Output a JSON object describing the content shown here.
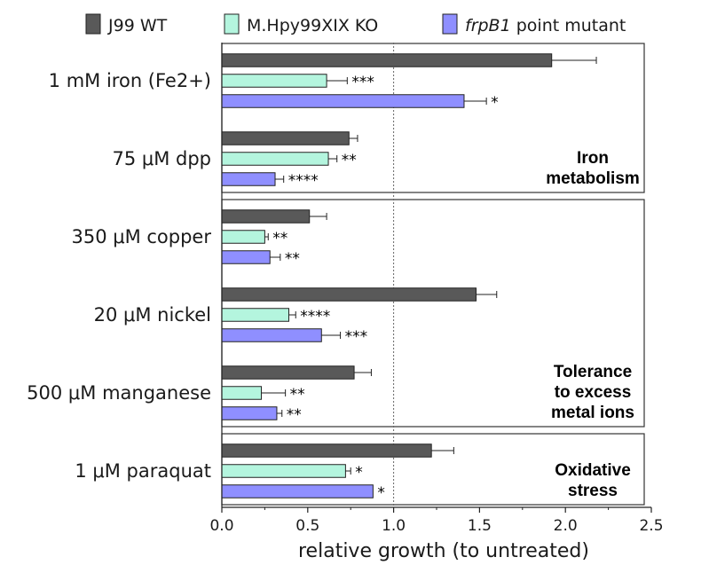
{
  "chart_data": {
    "type": "bar",
    "orientation": "horizontal",
    "xlabel": "relative growth (to untreated)",
    "xlim": [
      0,
      2.5
    ],
    "xticks": [
      "0.0",
      "0.5",
      "1.0",
      "1.5",
      "2.0",
      "2.5"
    ],
    "reference_line": 1.0,
    "grid": false,
    "legend_position": "top",
    "categories": [
      "1 mM iron (Fe2+)",
      "75 μM dpp",
      "350 μM copper",
      "20 μM nickel",
      "500 μM manganese",
      "1 μM paraquat"
    ],
    "series": [
      {
        "name": "J99 WT",
        "name_italic": "",
        "color": "#595959",
        "values": [
          1.92,
          0.74,
          0.51,
          1.48,
          0.77,
          1.22
        ],
        "errors": [
          0.26,
          0.05,
          0.1,
          0.12,
          0.1,
          0.13
        ],
        "significance": [
          "",
          "",
          "",
          "",
          "",
          ""
        ]
      },
      {
        "name": "M.Hpy99XIX KO",
        "name_italic": "",
        "color": "#b4f5de",
        "values": [
          0.61,
          0.62,
          0.25,
          0.39,
          0.23,
          0.72
        ],
        "errors": [
          0.12,
          0.05,
          0.02,
          0.04,
          0.14,
          0.03
        ],
        "significance": [
          "***",
          "**",
          "**",
          "****",
          "**",
          "*"
        ]
      },
      {
        "name": " point mutant",
        "name_italic": "frpB1",
        "color": "#8f8fff",
        "values": [
          1.41,
          0.31,
          0.28,
          0.58,
          0.32,
          0.88
        ],
        "errors": [
          0.13,
          0.05,
          0.06,
          0.11,
          0.03,
          0.0
        ],
        "significance": [
          "*",
          "****",
          "**",
          "***",
          "**",
          "*"
        ]
      }
    ],
    "groups": [
      {
        "lines": [
          "Iron",
          "metabolism"
        ],
        "categories": [
          0,
          1
        ]
      },
      {
        "lines": [
          "Tolerance",
          "to excess",
          "metal ions"
        ],
        "categories": [
          2,
          3,
          4
        ]
      },
      {
        "lines": [
          "Oxidative",
          "stress"
        ],
        "categories": [
          5
        ]
      }
    ]
  }
}
